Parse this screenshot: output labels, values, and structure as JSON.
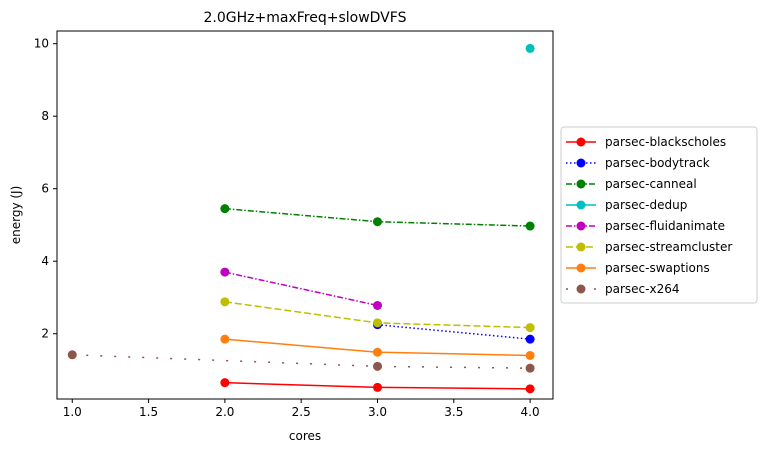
{
  "chart_data": {
    "type": "line",
    "title": "2.0GHz+maxFreq+slowDVFS",
    "xlabel": "cores",
    "ylabel": "energy (J)",
    "xlim": [
      0.9,
      4.15
    ],
    "ylim": [
      0.2,
      10.35
    ],
    "xticks": [
      1.0,
      1.5,
      2.0,
      2.5,
      3.0,
      3.5,
      4.0
    ],
    "xtick_labels": [
      "1.0",
      "1.5",
      "2.0",
      "2.5",
      "3.0",
      "3.5",
      "4.0"
    ],
    "yticks": [
      2,
      4,
      6,
      8,
      10
    ],
    "ytick_labels": [
      "2",
      "4",
      "6",
      "8",
      "10"
    ],
    "grid": false,
    "legend_position": "center-right, outside axes",
    "series": [
      {
        "name": "parsec-blackscholes",
        "color": "#ff0000",
        "linestyle": "solid",
        "x": [
          2,
          3,
          4
        ],
        "values": [
          0.65,
          0.52,
          0.48
        ]
      },
      {
        "name": "parsec-bodytrack",
        "color": "#0000ff",
        "linestyle": "dotted",
        "x": [
          3,
          4
        ],
        "values": [
          2.25,
          1.85
        ]
      },
      {
        "name": "parsec-canneal",
        "color": "#008000",
        "linestyle": "dashdot",
        "x": [
          2,
          3,
          4
        ],
        "values": [
          5.45,
          5.09,
          4.97
        ]
      },
      {
        "name": "parsec-dedup",
        "color": "#00bfbf",
        "linestyle": "solid",
        "x": [
          4
        ],
        "values": [
          9.87
        ]
      },
      {
        "name": "parsec-fluidanimate",
        "color": "#bf00bf",
        "linestyle": "dashdot",
        "x": [
          2,
          3
        ],
        "values": [
          3.7,
          2.78
        ]
      },
      {
        "name": "parsec-streamcluster",
        "color": "#bfbf00",
        "linestyle": "dashed",
        "x": [
          2,
          3,
          4
        ],
        "values": [
          2.88,
          2.3,
          2.17
        ]
      },
      {
        "name": "parsec-swaptions",
        "color": "#ff7f0e",
        "linestyle": "solid",
        "x": [
          2,
          3,
          4
        ],
        "values": [
          1.85,
          1.49,
          1.4
        ]
      },
      {
        "name": "parsec-x264",
        "color": "#8c564b",
        "linestyle": "loosely-dashdotdotted",
        "x": [
          1,
          3,
          4
        ],
        "values": [
          1.42,
          1.1,
          1.05
        ]
      }
    ]
  }
}
